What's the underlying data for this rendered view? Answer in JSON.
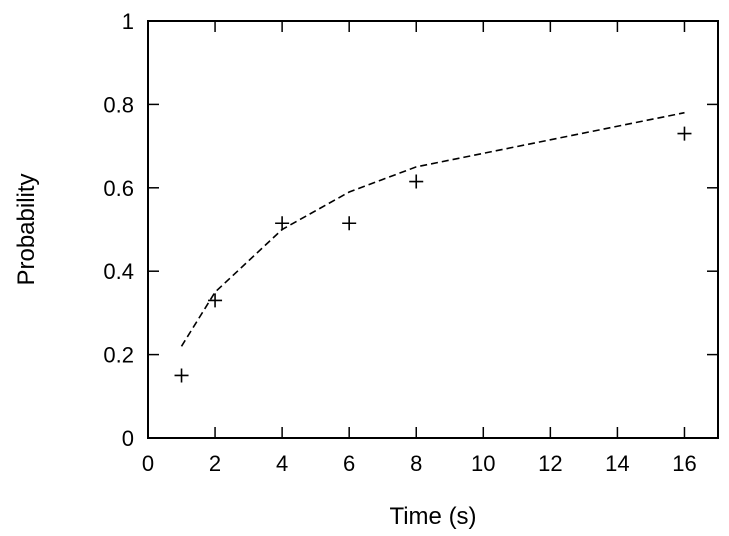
{
  "chart_data": {
    "type": "scatter",
    "title": "",
    "xlabel": "Time (s)",
    "ylabel": "Probability",
    "xlim": [
      0,
      17
    ],
    "ylim": [
      0,
      1
    ],
    "grid": false,
    "x_ticks": [
      0,
      2,
      4,
      6,
      8,
      10,
      12,
      14,
      16
    ],
    "y_ticks": [
      0,
      0.2,
      0.4,
      0.6,
      0.8,
      1
    ],
    "x_tick_labels": [
      "0",
      "2",
      "4",
      "6",
      "8",
      "10",
      "12",
      "14",
      "16"
    ],
    "y_tick_labels": [
      "0",
      "0.2",
      "0.4",
      "0.6",
      "0.8",
      "1"
    ],
    "series": [
      {
        "kind": "points",
        "marker": "plus",
        "color": "#000000",
        "x": [
          1,
          2,
          4,
          6,
          8,
          16
        ],
        "y": [
          0.15,
          0.33,
          0.515,
          0.515,
          0.615,
          0.73
        ]
      },
      {
        "kind": "line",
        "style": "dashed",
        "color": "#000000",
        "x": [
          1,
          2,
          4,
          6,
          8,
          16
        ],
        "y": [
          0.22,
          0.35,
          0.5,
          0.59,
          0.65,
          0.78
        ]
      }
    ]
  }
}
